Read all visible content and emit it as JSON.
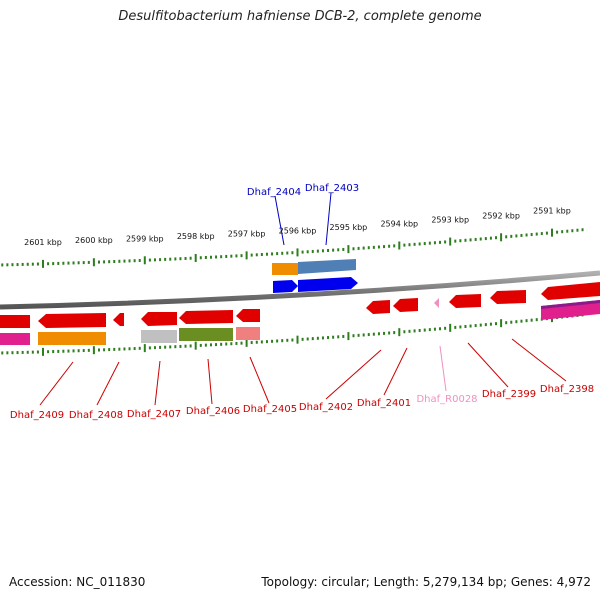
{
  "title": "Desulfitobacterium hafniense DCB-2, complete genome",
  "footer": {
    "accession": "Accession: NC_011830",
    "summary": "Topology: circular; Length: 5,279,134 bp; Genes: 4,972"
  },
  "scale": {
    "unit": "kbp",
    "ticks": [
      {
        "label": "2601 kbp",
        "kbp": 2601
      },
      {
        "label": "2600 kbp",
        "kbp": 2600
      },
      {
        "label": "2599 kbp",
        "kbp": 2599
      },
      {
        "label": "2598 kbp",
        "kbp": 2598
      },
      {
        "label": "2597 kbp",
        "kbp": 2597
      },
      {
        "label": "2596 kbp",
        "kbp": 2596
      },
      {
        "label": "2595 kbp",
        "kbp": 2595
      },
      {
        "label": "2594 kbp",
        "kbp": 2594
      },
      {
        "label": "2593 kbp",
        "kbp": 2593
      },
      {
        "label": "2592 kbp",
        "kbp": 2592
      },
      {
        "label": "2591 kbp",
        "kbp": 2591
      }
    ]
  },
  "colors": {
    "backbone": "#808080",
    "tick": "#2e7d1e",
    "cds": "#e00000",
    "trna": "#f090c0",
    "plus_label": "#0000c0",
    "minus_label": "#cc0000",
    "blue": "#0000ee",
    "orange": "#f08c00",
    "steel": "#4f7fb5",
    "gray": "#c0c0c0",
    "olive": "#6b8e23",
    "pink": "#f08080",
    "magenta": "#e0208c",
    "purple": "#8b1a8b"
  },
  "genes_top": [
    {
      "label": "Dhaf_2404"
    },
    {
      "label": "Dhaf_2403"
    }
  ],
  "genes_bottom": [
    {
      "label": "Dhaf_2409"
    },
    {
      "label": "Dhaf_2408"
    },
    {
      "label": "Dhaf_2407"
    },
    {
      "label": "Dhaf_2406"
    },
    {
      "label": "Dhaf_2405"
    },
    {
      "label": "Dhaf_2402"
    },
    {
      "label": "Dhaf_2401"
    },
    {
      "label": "Dhaf_R0028"
    },
    {
      "label": "Dhaf_2399"
    },
    {
      "label": "Dhaf_2398"
    }
  ]
}
